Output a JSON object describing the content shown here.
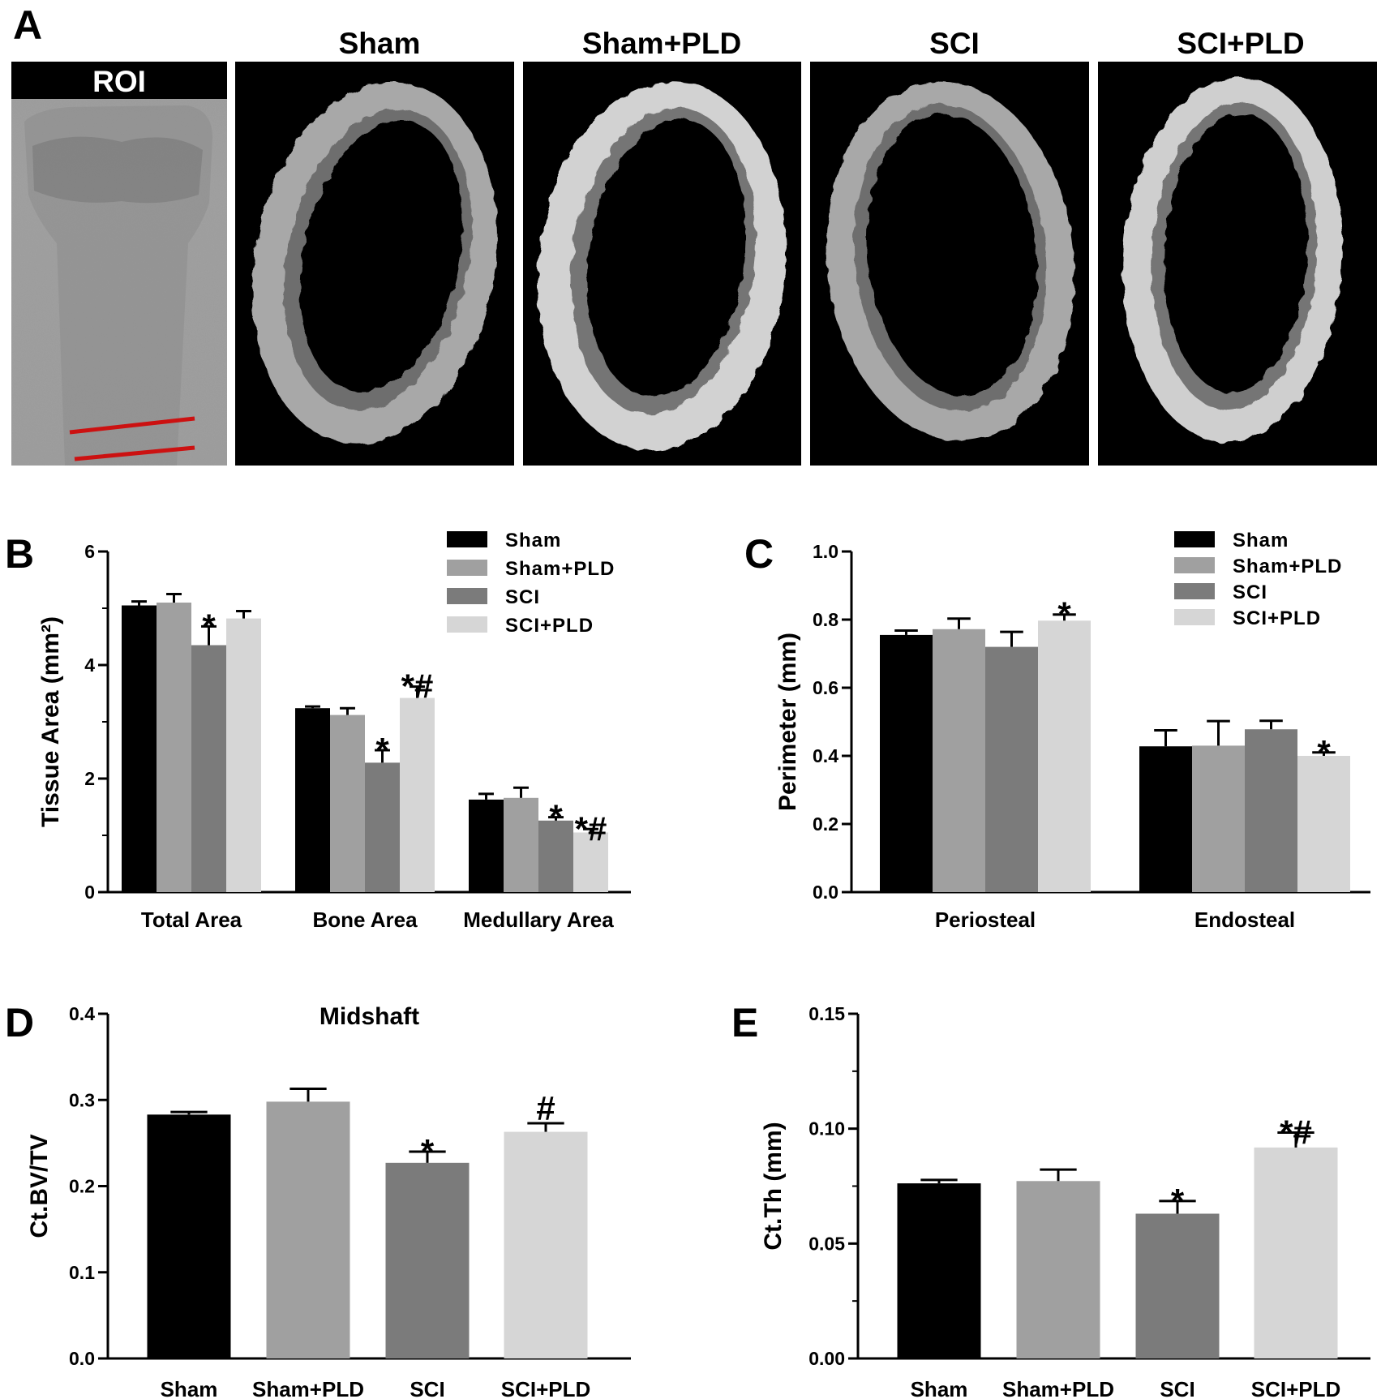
{
  "panel_a": {
    "letter": "A",
    "roi_label": "ROI",
    "group_titles": [
      "Sham",
      "Sham+PLD",
      "SCI",
      "SCI+PLD"
    ]
  },
  "colors": {
    "Sham": "#000000",
    "Sham+PLD": "#a0a0a0",
    "SCI": "#7b7b7b",
    "SCI+PLD": "#d6d6d6",
    "roi_line": "#cc1111"
  },
  "chart_data": [
    {
      "id": "B",
      "letter": "B",
      "type": "bar",
      "title": "",
      "ylabel": "Tissue Area (mm²)",
      "ylim": [
        0,
        6
      ],
      "yticks": [
        "0",
        "2",
        "4",
        "6"
      ],
      "categories": [
        "Total Area",
        "Bone Area",
        "Medullary Area"
      ],
      "legend": [
        "Sham",
        "Sham+PLD",
        "SCI",
        "SCI+PLD"
      ],
      "legend_position": "top-right",
      "series": [
        {
          "name": "Sham",
          "values": [
            5.05,
            3.24,
            1.63
          ],
          "errors": [
            0.07,
            0.03,
            0.1
          ]
        },
        {
          "name": "Sham+PLD",
          "values": [
            5.1,
            3.12,
            1.66
          ],
          "errors": [
            0.15,
            0.12,
            0.18
          ]
        },
        {
          "name": "SCI",
          "values": [
            4.35,
            2.28,
            1.26
          ],
          "errors": [
            0.33,
            0.22,
            0.06
          ]
        },
        {
          "name": "SCI+PLD",
          "values": [
            4.82,
            3.42,
            1.05
          ],
          "errors": [
            0.13,
            0.2,
            0.06
          ]
        }
      ],
      "annotations": [
        {
          "category": 0,
          "series": 2,
          "text": "*"
        },
        {
          "category": 1,
          "series": 2,
          "text": "*"
        },
        {
          "category": 1,
          "series": 3,
          "text": "*#"
        },
        {
          "category": 2,
          "series": 2,
          "text": "*"
        },
        {
          "category": 2,
          "series": 3,
          "text": "*#"
        }
      ]
    },
    {
      "id": "C",
      "letter": "C",
      "type": "bar",
      "title": "",
      "ylabel": "Perimeter (mm)",
      "ylim": [
        0,
        1.0
      ],
      "yticks": [
        "0.0",
        "0.2",
        "0.4",
        "0.6",
        "0.8",
        "1.0"
      ],
      "categories": [
        "Periosteal",
        "Endosteal"
      ],
      "legend": [
        "Sham",
        "Sham+PLD",
        "SCI",
        "SCI+PLD"
      ],
      "legend_position": "top-right",
      "series": [
        {
          "name": "Sham",
          "values": [
            0.755,
            0.428
          ],
          "errors": [
            0.013,
            0.047
          ]
        },
        {
          "name": "Sham+PLD",
          "values": [
            0.772,
            0.43
          ],
          "errors": [
            0.031,
            0.072
          ]
        },
        {
          "name": "SCI",
          "values": [
            0.72,
            0.478
          ],
          "errors": [
            0.044,
            0.025
          ]
        },
        {
          "name": "SCI+PLD",
          "values": [
            0.797,
            0.4
          ],
          "errors": [
            0.018,
            0.01
          ]
        }
      ],
      "annotations": [
        {
          "category": 0,
          "series": 3,
          "text": "*"
        },
        {
          "category": 1,
          "series": 3,
          "text": "*"
        }
      ]
    },
    {
      "id": "D",
      "letter": "D",
      "type": "bar",
      "title": "Midshaft",
      "ylabel": "Ct.BV/TV",
      "ylim": [
        0,
        0.4
      ],
      "yticks": [
        "0.0",
        "0.1",
        "0.2",
        "0.3",
        "0.4"
      ],
      "categories": [
        "Sham",
        "Sham+PLD",
        "SCI",
        "SCI+PLD"
      ],
      "series": [
        {
          "name": "",
          "values": [
            0.283,
            0.298,
            0.227,
            0.263
          ],
          "errors": [
            0.003,
            0.015,
            0.013,
            0.01
          ]
        }
      ],
      "annotations": [
        {
          "category": 2,
          "series": 0,
          "text": "*"
        },
        {
          "category": 3,
          "series": 0,
          "text": "#"
        }
      ]
    },
    {
      "id": "E",
      "letter": "E",
      "type": "bar",
      "title": "",
      "ylabel": "Ct.Th (mm)",
      "ylim": [
        0,
        0.15
      ],
      "yticks": [
        "0.00",
        "0.05",
        "0.10",
        "0.15"
      ],
      "categories": [
        "Sham",
        "Sham+PLD",
        "SCI",
        "SCI+PLD"
      ],
      "series": [
        {
          "name": "",
          "values": [
            0.0762,
            0.0772,
            0.063,
            0.0918
          ],
          "errors": [
            0.0015,
            0.005,
            0.0055,
            0.0065
          ]
        }
      ],
      "annotations": [
        {
          "category": 2,
          "series": 0,
          "text": "*"
        },
        {
          "category": 3,
          "series": 0,
          "text": "*#"
        }
      ]
    }
  ]
}
